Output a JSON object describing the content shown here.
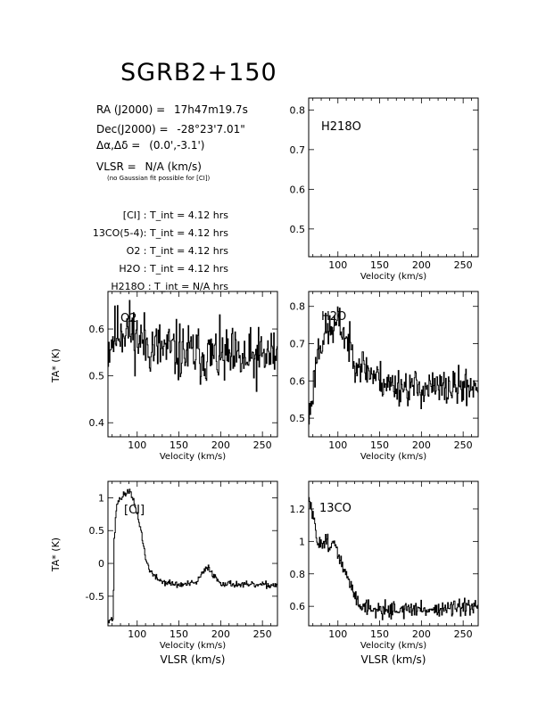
{
  "header": {
    "title": "SGRB2+150",
    "ra_label": "RA (J2000) =",
    "ra_value": "17h47m19.7s",
    "dec_label": "Dec(J2000) =",
    "dec_value": "-28°23'7.01\"",
    "offset_label": "Δα,Δδ =",
    "offset_value": "(0.0',-3.1')",
    "vlsr_label": "VLSR =",
    "vlsr_value": "N/A  (km/s)",
    "note": "(no Gaussian fit possible for [CI])"
  },
  "integration_times": [
    {
      "species": "[CI] :",
      "value": "T_int = 4.12 hrs"
    },
    {
      "species": "13CO(5-4):",
      "value": "T_int = 4.12 hrs"
    },
    {
      "species": "O2 :",
      "value": "T_int = 4.12 hrs"
    },
    {
      "species": "H2O :",
      "value": "T_int = 4.12 hrs"
    },
    {
      "species": "H218O :",
      "value": "T_int = N/A  hrs"
    }
  ],
  "axis_text": {
    "xlabel": "Velocity (km/s)",
    "vlsr_xlabel": "VLSR (km/s)",
    "ylabel": "TA* (K)"
  },
  "chart_data": [
    {
      "type": "line",
      "panel": "H218O",
      "label": "H218O",
      "xlim": [
        65,
        268
      ],
      "ylim": [
        0.43,
        0.83
      ],
      "xticks": [
        100,
        150,
        200,
        250
      ],
      "yticks": [
        0.5,
        0.6,
        0.7,
        0.8
      ],
      "xlabel": "Velocity (km/s)",
      "ylabel": "",
      "grid": false,
      "series": [],
      "noise": 0
    },
    {
      "type": "line",
      "panel": "O2",
      "label": "O2",
      "xlim": [
        65,
        268
      ],
      "ylim": [
        0.37,
        0.68
      ],
      "xticks": [
        100,
        150,
        200,
        250
      ],
      "yticks": [
        0.4,
        0.5,
        0.6
      ],
      "xlabel": "Velocity (km/s)",
      "ylabel": "TA* (K)",
      "grid": false,
      "noise": 0.045,
      "seed": 11,
      "series": [
        {
          "x": [
            65,
            70,
            80,
            90,
            100,
            120,
            150,
            200,
            230,
            250,
            268
          ],
          "y": [
            0.56,
            0.58,
            0.6,
            0.6,
            0.58,
            0.56,
            0.55,
            0.54,
            0.53,
            0.54,
            0.55
          ]
        }
      ]
    },
    {
      "type": "line",
      "panel": "H2O",
      "label": "H2O",
      "xlim": [
        65,
        268
      ],
      "ylim": [
        0.45,
        0.84
      ],
      "xticks": [
        100,
        150,
        200,
        250
      ],
      "yticks": [
        0.5,
        0.6,
        0.7,
        0.8
      ],
      "xlabel": "Velocity (km/s)",
      "ylabel": "",
      "grid": false,
      "noise": 0.035,
      "seed": 23,
      "series": [
        {
          "x": [
            65,
            70,
            75,
            85,
            95,
            100,
            110,
            120,
            140,
            160,
            200,
            240,
            268
          ],
          "y": [
            0.5,
            0.58,
            0.68,
            0.73,
            0.74,
            0.76,
            0.71,
            0.66,
            0.62,
            0.59,
            0.58,
            0.58,
            0.59
          ]
        }
      ]
    },
    {
      "type": "line",
      "panel": "CI",
      "label": "[CI]",
      "xlim": [
        65,
        268
      ],
      "ylim": [
        -0.95,
        1.25
      ],
      "xticks": [
        100,
        150,
        200,
        250
      ],
      "yticks": [
        -0.5,
        0,
        0.5,
        1
      ],
      "xlabel": "Velocity (km/s)",
      "ylabel": "TA* (K)",
      "grid": false,
      "noise": 0.035,
      "seed": 37,
      "series": [
        {
          "x": [
            65,
            71,
            72,
            75,
            80,
            85,
            90,
            95,
            100,
            105,
            110,
            115,
            120,
            130,
            150,
            170,
            178,
            185,
            192,
            200,
            230,
            268
          ],
          "y": [
            -0.85,
            -0.85,
            0.3,
            0.9,
            1.0,
            1.05,
            1.12,
            0.95,
            0.75,
            0.45,
            0.05,
            -0.1,
            -0.2,
            -0.28,
            -0.33,
            -0.3,
            -0.15,
            -0.05,
            -0.2,
            -0.3,
            -0.33,
            -0.33
          ]
        }
      ]
    },
    {
      "type": "line",
      "panel": "13CO",
      "label": "13CO",
      "xlim": [
        65,
        268
      ],
      "ylim": [
        0.48,
        1.37
      ],
      "xticks": [
        100,
        150,
        200,
        250
      ],
      "yticks": [
        0.6,
        0.8,
        1,
        1.2
      ],
      "xlabel": "Velocity (km/s)",
      "ylabel": "",
      "grid": false,
      "noise": 0.035,
      "seed": 51,
      "series": [
        {
          "x": [
            65,
            68,
            75,
            85,
            95,
            105,
            115,
            125,
            140,
            200,
            268
          ],
          "y": [
            1.25,
            1.2,
            1.0,
            1.0,
            0.98,
            0.85,
            0.72,
            0.62,
            0.58,
            0.58,
            0.59
          ]
        }
      ]
    }
  ]
}
